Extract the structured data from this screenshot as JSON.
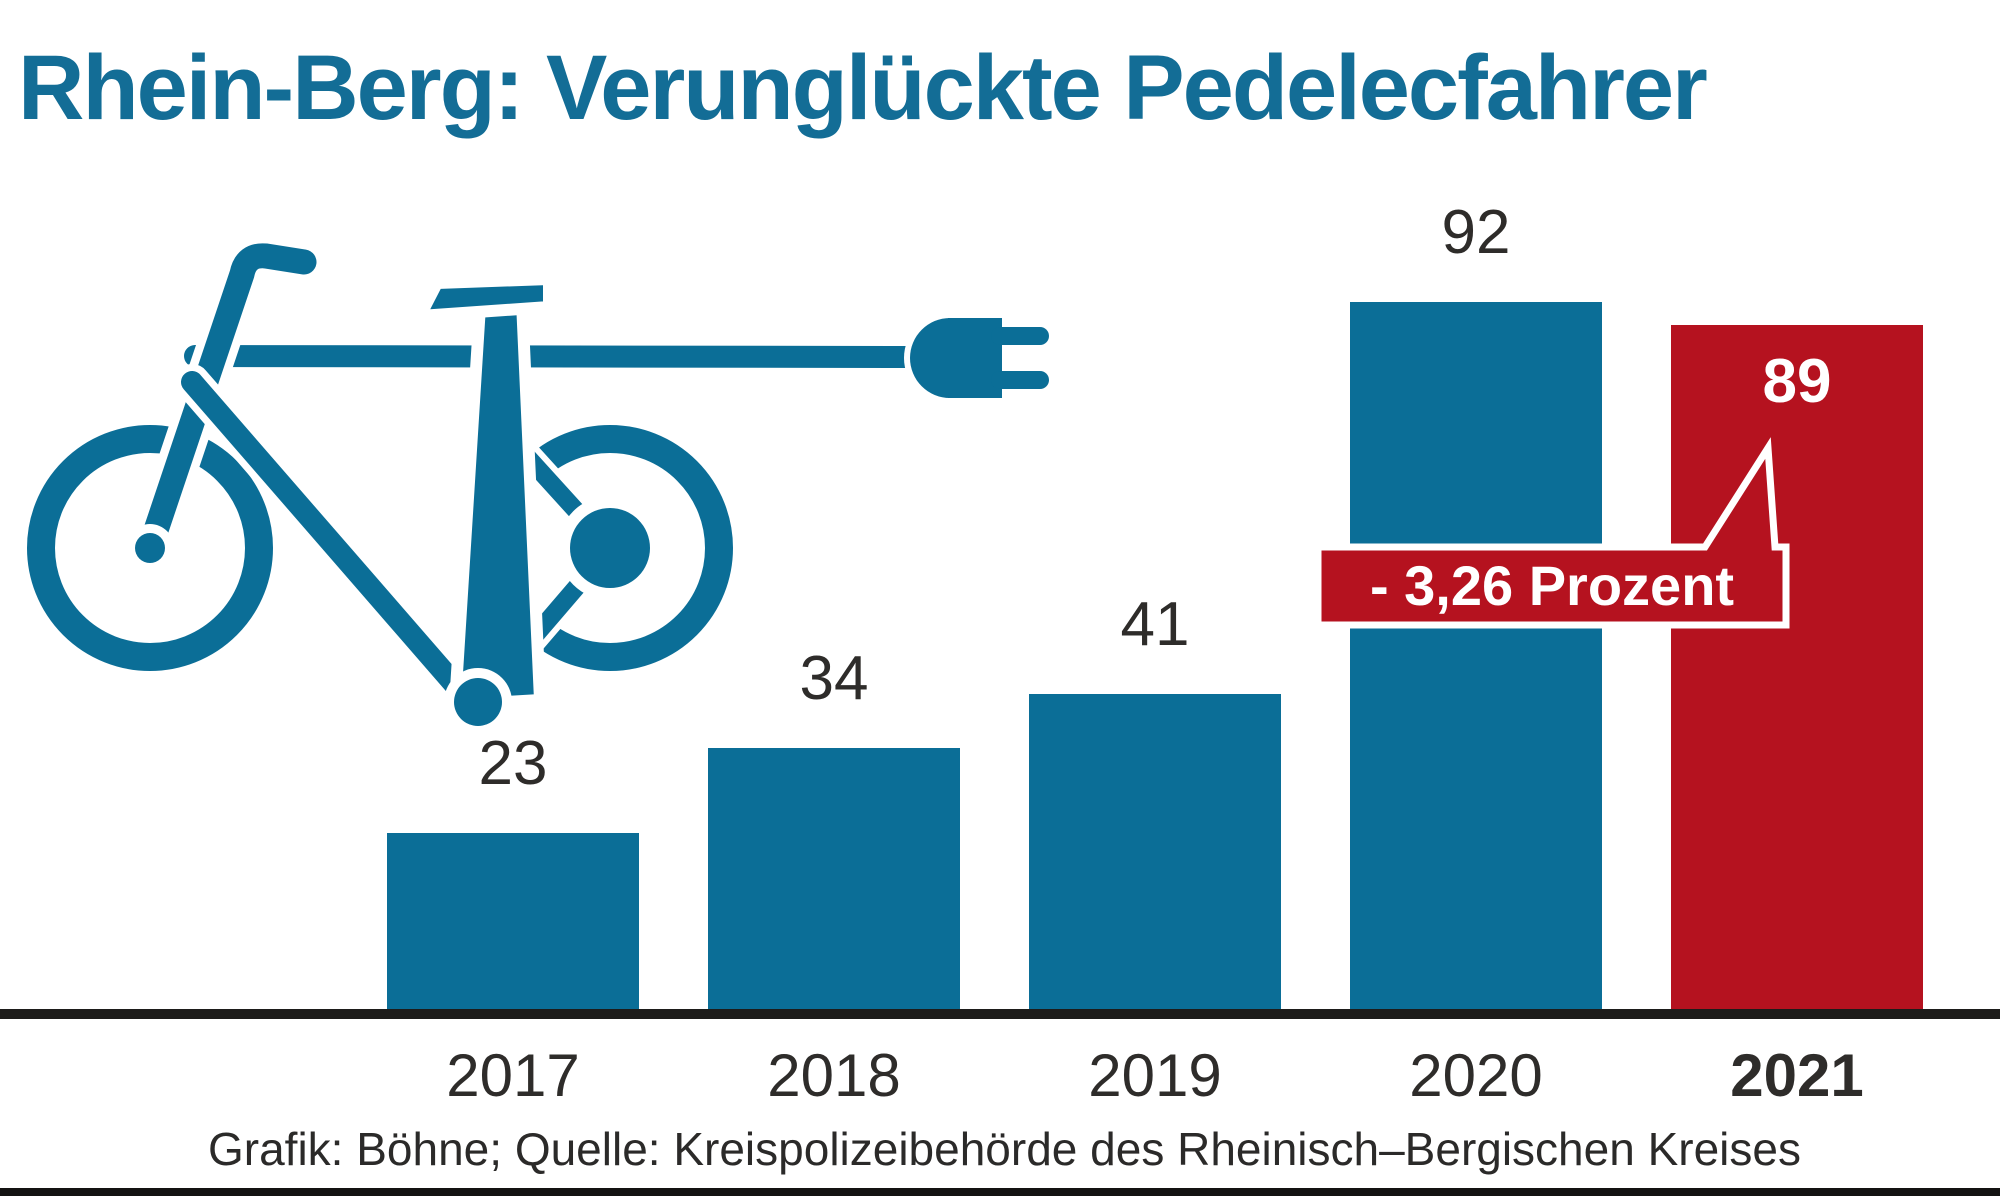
{
  "title": {
    "text": "Rhein-Berg: Verunglückte Pedelecfahrer"
  },
  "chart_data": {
    "type": "bar",
    "title": "Rhein-Berg: Verunglückte Pedelecfahrer",
    "categories": [
      "2017",
      "2018",
      "2019",
      "2020",
      "2021"
    ],
    "values": [
      23,
      34,
      41,
      92,
      89
    ],
    "bar_color": "#0b6e97",
    "highlight_index": 4,
    "highlight_color": "#b5121f",
    "annotation": "- 3,26 Prozent",
    "annotation_refers_to": "2021",
    "value_labels_shown": true,
    "y_axis_shown": false,
    "grid": false,
    "baseline_shown": true
  },
  "source": {
    "text": "Grafik: Böhne; Quelle: Kreispolizeibehörde des Rheinisch–Bergischen Kreises"
  },
  "icon": {
    "name": "pedelec-bicycle-with-power-plug-icon",
    "color": "#0b6e97"
  },
  "colors": {
    "title_blue": "#136d96",
    "accent_blue": "#0b6e97",
    "accent_red": "#b5121f",
    "text_dark": "#2e2c2a",
    "axis_line": "#1d1c1a",
    "annotation_text": "#ffffff",
    "background": "#ffffff"
  }
}
